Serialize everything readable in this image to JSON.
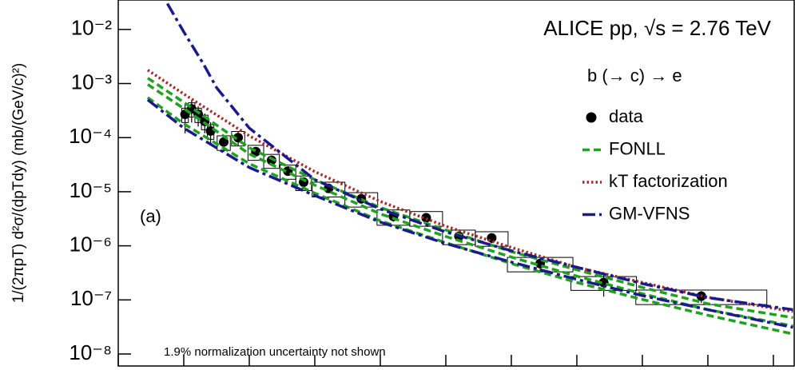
{
  "chart_data": {
    "type": "scatter",
    "title": "ALICE pp, √s = 2.76 TeV",
    "subtitle": "b (→ c) → e",
    "ylabel": "1/(2πpT) d²σ/(dpTdy) (mb/(GeV/c)²)",
    "annotations": [
      "(a)",
      "1.9% normalization uncertainty not shown"
    ],
    "xlim": [
      0,
      10.33
    ],
    "xticks": [
      0,
      1,
      2,
      3,
      4,
      5,
      6,
      7,
      8,
      9,
      10
    ],
    "ylim": [
      6e-09,
      0.035
    ],
    "ylog": true,
    "yticks": [
      {
        "value": 1e-08,
        "label": "10⁻⁸"
      },
      {
        "value": 1e-07,
        "label": "10⁻⁷"
      },
      {
        "value": 1e-06,
        "label": "10⁻⁶"
      },
      {
        "value": 1e-05,
        "label": "10⁻⁵"
      },
      {
        "value": 0.0001,
        "label": "10⁻⁴"
      },
      {
        "value": 0.001,
        "label": "10⁻³"
      },
      {
        "value": 0.01,
        "label": "10⁻²"
      }
    ],
    "legend": "upper right",
    "series": [
      {
        "name": "data",
        "color": "#000000",
        "style": "points",
        "x": [
          1.02,
          1.12,
          1.22,
          1.32,
          1.41,
          1.61,
          1.83,
          2.1,
          2.34,
          2.59,
          2.83,
          3.21,
          3.71,
          4.2,
          4.7,
          5.2,
          5.7,
          6.44,
          7.41,
          8.9
        ],
        "values": [
          0.00027,
          0.00034,
          0.00027,
          0.0002,
          0.000133,
          8.3e-05,
          0.0001,
          5.5e-05,
          3.8e-05,
          2.4e-05,
          1.5e-05,
          1.15e-05,
          7.4e-06,
          3.5e-06,
          3.3e-06,
          1.5e-06,
          1.4e-06,
          4.7e-07,
          2.1e-07,
          1.17e-07
        ],
        "errors": [
          0.00015,
          0.00015,
          0.00011,
          8e-05,
          6e-05,
          2.9e-05,
          3e-05,
          1.1e-05,
          5.7e-06,
          3.6e-06,
          2.3e-06,
          1.2e-06,
          1.1e-06,
          7e-07,
          6.6e-07,
          3e-07,
          2.8e-07,
          1.2e-07,
          9.5e-08,
          2.9e-08
        ],
        "sys": [
          8e-05,
          0.0001,
          8e-05,
          6e-05,
          4e-05,
          2.5e-05,
          3e-05,
          1.7e-05,
          1.1e-05,
          7e-06,
          4.5e-06,
          3.5e-06,
          2.2e-06,
          1.1e-06,
          1e-06,
          4.5e-07,
          4.2e-07,
          1.4e-07,
          6e-08,
          3.5e-08
        ],
        "xerr": [
          0.05,
          0.05,
          0.05,
          0.05,
          0.05,
          0.1,
          0.1,
          0.12,
          0.12,
          0.12,
          0.12,
          0.25,
          0.25,
          0.25,
          0.25,
          0.25,
          0.25,
          0.5,
          0.5,
          1.0
        ]
      },
      {
        "name": "FONLL",
        "color": "#22a022",
        "style": "dashed",
        "lines": [
          {
            "x": [
              0.45,
              1,
              2,
              3,
              4,
              5,
              6,
              7,
              8,
              9,
              10.3
            ],
            "values": [
              0.00126,
              0.00045,
              6.5e-05,
              1.67e-05,
              5.1e-06,
              1.96e-06,
              7.8e-07,
              3.6e-07,
              1.7e-07,
              8.5e-08,
              4.7e-08
            ]
          },
          {
            "x": [
              0.45,
              1,
              2,
              3,
              4,
              5,
              6,
              7,
              8,
              9,
              10.3
            ],
            "values": [
              0.00096,
              0.000345,
              5e-05,
              1.32e-05,
              3.9e-06,
              1.49e-06,
              6.2e-07,
              2.75e-07,
              1.3e-07,
              6.6e-08,
              3.3e-08
            ]
          },
          {
            "x": [
              0.45,
              1,
              2,
              3,
              4,
              5,
              6,
              7,
              8,
              9,
              10.3
            ],
            "values": [
              0.00055,
              0.00018,
              3.3e-05,
              9.4e-06,
              2.9e-06,
              1.14e-06,
              4.7e-07,
              2.1e-07,
              1.02e-07,
              5.2e-08,
              2.35e-08
            ]
          }
        ]
      },
      {
        "name": "kT factorization",
        "color": "#a52a2a",
        "style": "dotted",
        "lines": [
          {
            "x": [
              0.45,
              1,
              2,
              3,
              4,
              5,
              6,
              7,
              8,
              9,
              10.3
            ],
            "values": [
              0.00177,
              0.00064,
              0.000108,
              2.35e-05,
              6.6e-06,
              2.3e-06,
              9.3e-07,
              4e-07,
              2.1e-07,
              1.12e-07,
              6.1e-08
            ]
          }
        ]
      },
      {
        "name": "GM-VFNS",
        "color": "#1a1a8c",
        "style": "dashdot",
        "lines": [
          {
            "x": [
              0.75,
              1,
              1.3,
              1.5,
              2,
              3,
              4,
              5,
              6,
              7,
              8,
              9,
              10.3
            ],
            "values": [
              0.03,
              0.009,
              0.0023,
              0.00084,
              0.00015,
              1.67e-05,
              4.8e-06,
              1.8e-06,
              8.1e-07,
              4e-07,
              2e-07,
              1.1e-07,
              6.6e-08
            ]
          },
          {
            "x": [
              0.45,
              1,
              2,
              3,
              4,
              5,
              6,
              7,
              8,
              9,
              10.3
            ],
            "values": [
              0.0005,
              0.00015,
              2.8e-05,
              8.5e-06,
              2.75e-06,
              1.1e-06,
              5e-07,
              2.4e-07,
              1.2e-07,
              6.6e-08,
              3.1e-08
            ]
          }
        ]
      }
    ]
  }
}
